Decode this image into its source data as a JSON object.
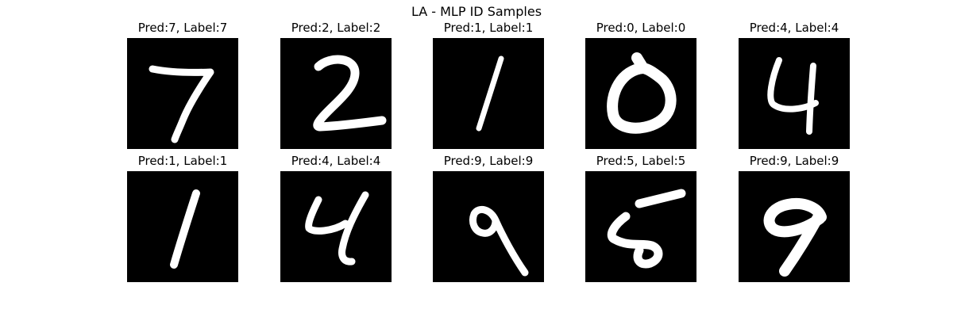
{
  "figure": {
    "title": "LA - MLP ID Samples"
  },
  "samples": [
    {
      "caption": "Pred:7, Label:7",
      "digit": "7"
    },
    {
      "caption": "Pred:2, Label:2",
      "digit": "2"
    },
    {
      "caption": "Pred:1, Label:1",
      "digit": "1"
    },
    {
      "caption": "Pred:0, Label:0",
      "digit": "0"
    },
    {
      "caption": "Pred:4, Label:4",
      "digit": "4"
    },
    {
      "caption": "Pred:1, Label:1",
      "digit": "1"
    },
    {
      "caption": "Pred:4, Label:4",
      "digit": "4"
    },
    {
      "caption": "Pred:9, Label:9",
      "digit": "9"
    },
    {
      "caption": "Pred:5, Label:5",
      "digit": "5"
    },
    {
      "caption": "Pred:9, Label:9",
      "digit": "9"
    }
  ],
  "colors": {
    "image_background": "#000000",
    "stroke": "#ffffff"
  }
}
